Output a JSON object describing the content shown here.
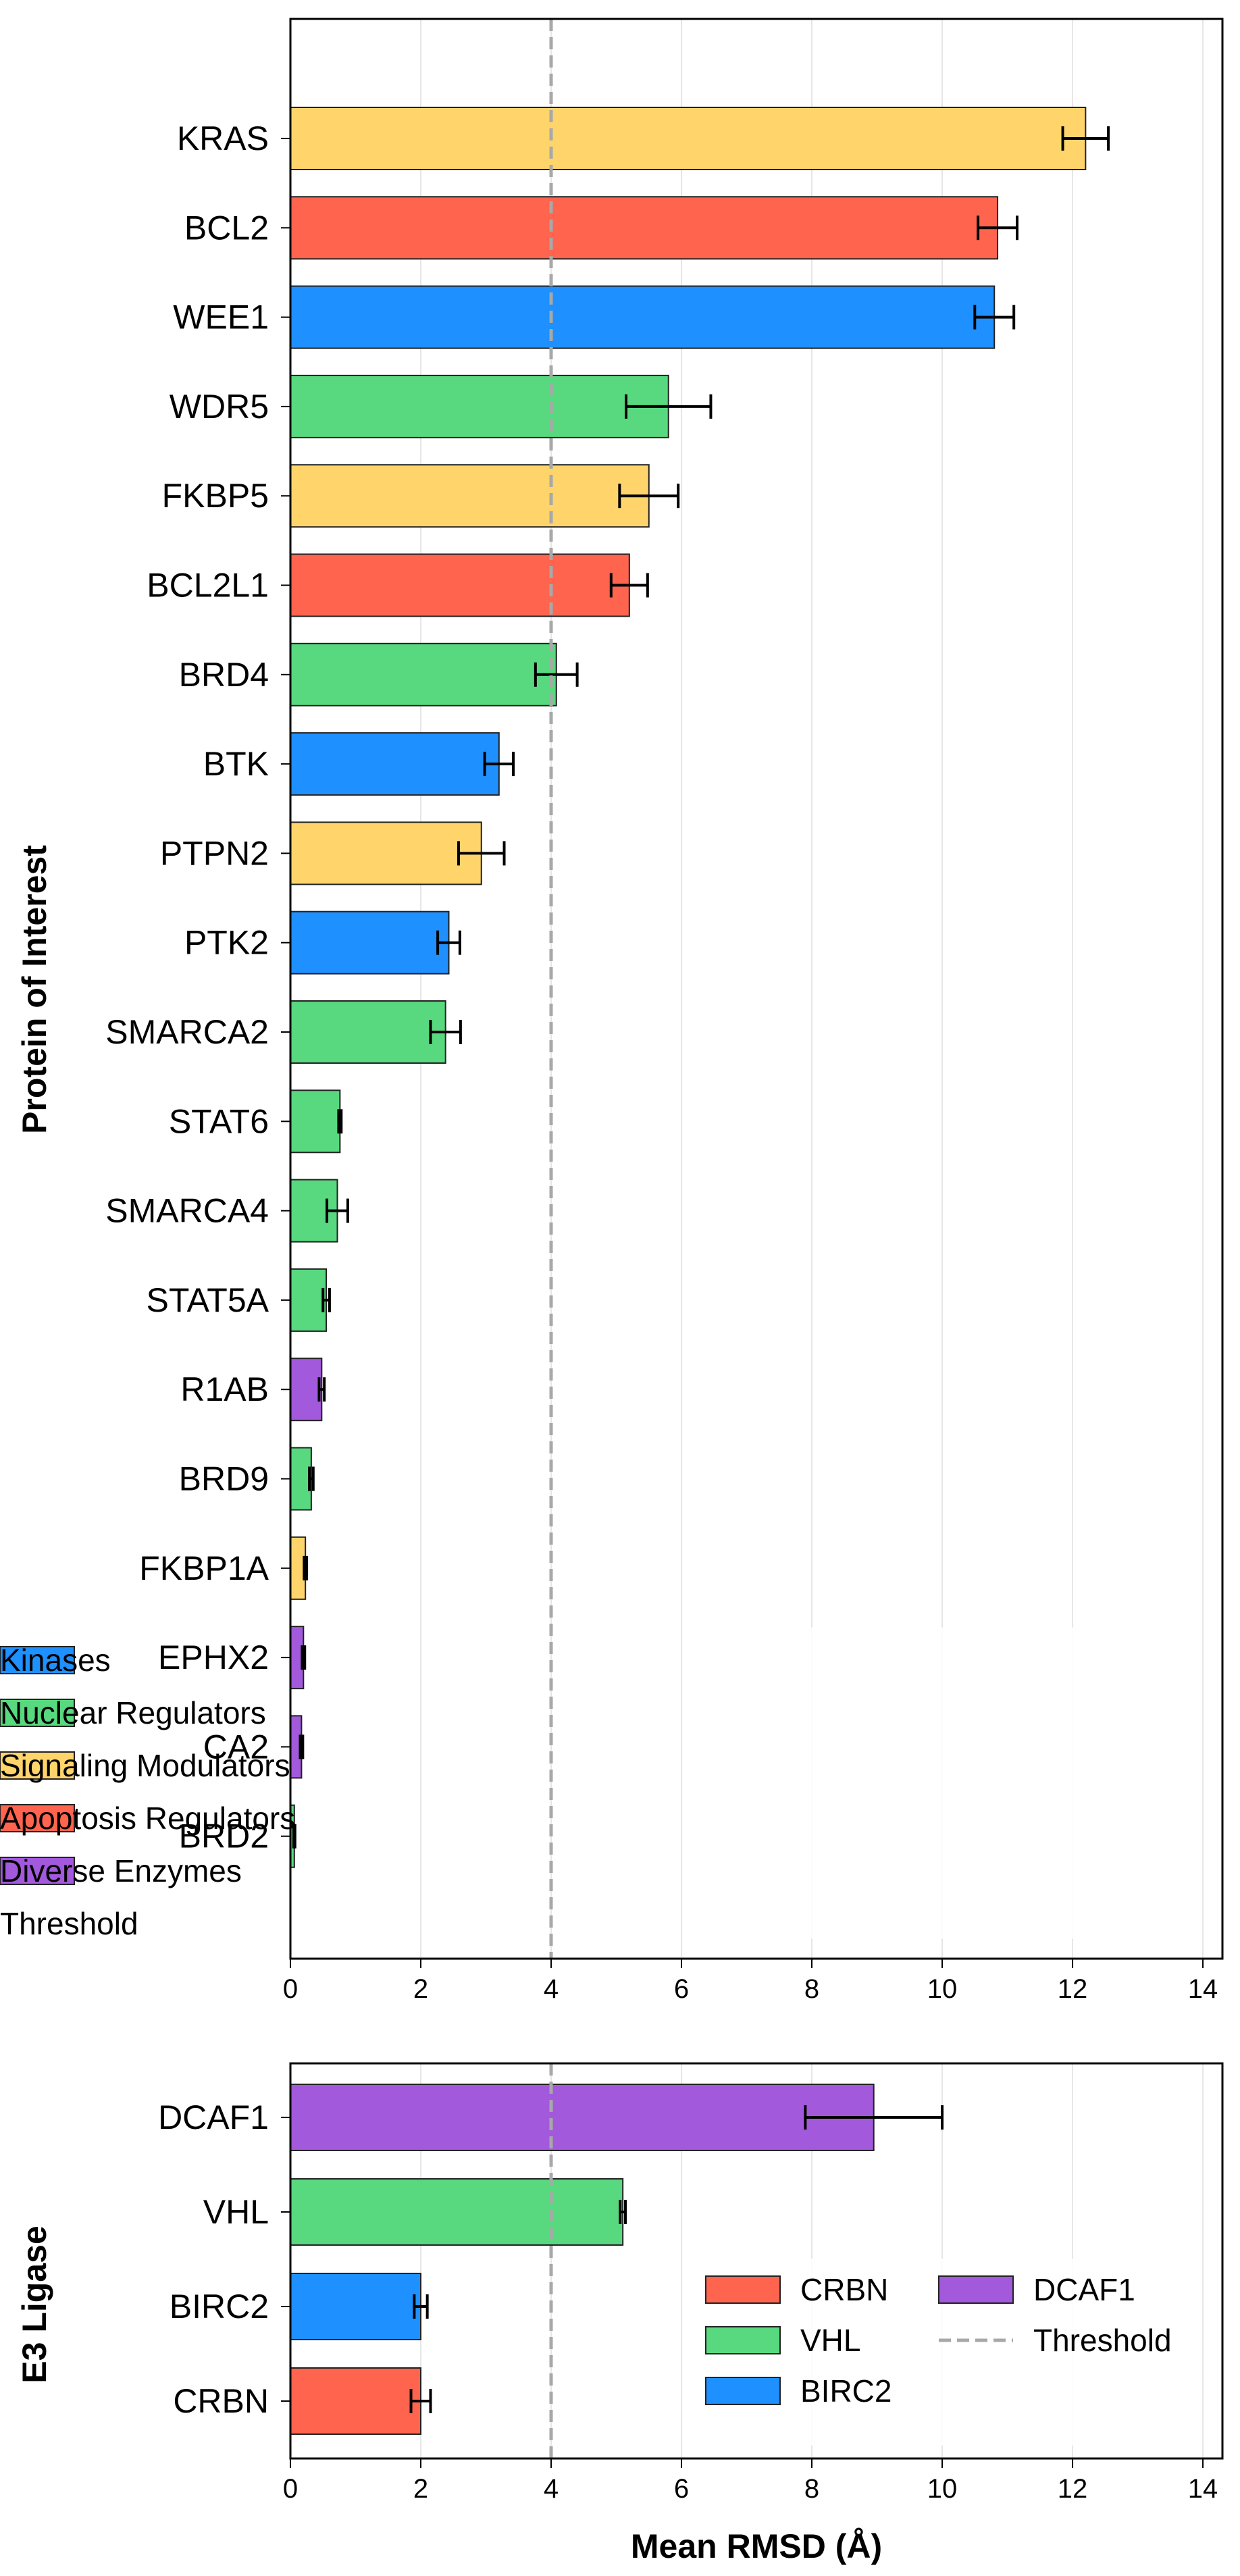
{
  "threshold": 4,
  "colors": {
    "Kinases": "#1E90FF",
    "Nuclear Regulators": "#58D97F",
    "Signaling Modulators": "#FFD56B",
    "Apoptosis Regulators": "#FF644E",
    "Diverse Enzymes": "#A259DC",
    "CRBN": "#FF644E",
    "VHL": "#58D97F",
    "BIRC2": "#1E90FF",
    "DCAF1": "#A259DC",
    "threshold_line": "#A8A8A8",
    "grid": "#E6E6E6"
  },
  "chart_data": [
    {
      "type": "bar",
      "orientation": "horizontal",
      "ylabel": "Protein of Interest",
      "xlim": [
        0,
        14.3
      ],
      "xticks": [
        "0",
        "2",
        "4",
        "6",
        "8",
        "10",
        "12",
        "14"
      ],
      "grid": "vertical",
      "legend_position": "lower-right",
      "legend": [
        "Kinases",
        "Nuclear Regulators",
        "Signaling Modulators",
        "Apoptosis Regulators",
        "Diverse Enzymes",
        "Threshold"
      ],
      "bars": [
        {
          "name": "KRAS",
          "value": 12.2,
          "error": 0.35,
          "group": "Signaling Modulators"
        },
        {
          "name": "BCL2",
          "value": 10.85,
          "error": 0.3,
          "group": "Apoptosis Regulators"
        },
        {
          "name": "WEE1",
          "value": 10.8,
          "error": 0.3,
          "group": "Kinases"
        },
        {
          "name": "WDR5",
          "value": 5.8,
          "error": 0.65,
          "group": "Nuclear Regulators"
        },
        {
          "name": "FKBP5",
          "value": 5.5,
          "error": 0.45,
          "group": "Signaling Modulators"
        },
        {
          "name": "BCL2L1",
          "value": 5.2,
          "error": 0.28,
          "group": "Apoptosis Regulators"
        },
        {
          "name": "BRD4",
          "value": 4.08,
          "error": 0.32,
          "group": "Nuclear Regulators"
        },
        {
          "name": "BTK",
          "value": 3.2,
          "error": 0.22,
          "group": "Kinases"
        },
        {
          "name": "PTPN2",
          "value": 2.93,
          "error": 0.35,
          "group": "Signaling Modulators"
        },
        {
          "name": "PTK2",
          "value": 2.43,
          "error": 0.17,
          "group": "Kinases"
        },
        {
          "name": "SMARCA2",
          "value": 2.38,
          "error": 0.23,
          "group": "Nuclear Regulators"
        },
        {
          "name": "STAT6",
          "value": 0.76,
          "error": 0.02,
          "group": "Nuclear Regulators"
        },
        {
          "name": "SMARCA4",
          "value": 0.72,
          "error": 0.16,
          "group": "Nuclear Regulators"
        },
        {
          "name": "STAT5A",
          "value": 0.55,
          "error": 0.05,
          "group": "Nuclear Regulators"
        },
        {
          "name": "R1AB",
          "value": 0.48,
          "error": 0.04,
          "group": "Diverse Enzymes"
        },
        {
          "name": "BRD9",
          "value": 0.32,
          "error": 0.03,
          "group": "Nuclear Regulators"
        },
        {
          "name": "FKBP1A",
          "value": 0.23,
          "error": 0.02,
          "group": "Signaling Modulators"
        },
        {
          "name": "EPHX2",
          "value": 0.2,
          "error": 0.02,
          "group": "Diverse Enzymes"
        },
        {
          "name": "CA2",
          "value": 0.17,
          "error": 0.02,
          "group": "Diverse Enzymes"
        },
        {
          "name": "BRD2",
          "value": 0.06,
          "error": 0.01,
          "group": "Nuclear Regulators"
        }
      ]
    },
    {
      "type": "bar",
      "orientation": "horizontal",
      "ylabel": "E3 Ligase",
      "xlabel": "Mean RMSD (Å)",
      "xlim": [
        0,
        14.3
      ],
      "xticks": [
        "0",
        "2",
        "4",
        "6",
        "8",
        "10",
        "12",
        "14"
      ],
      "grid": "vertical",
      "legend_position": "lower-right",
      "legend": [
        "CRBN",
        "VHL",
        "BIRC2",
        "DCAF1",
        "Threshold"
      ],
      "bars": [
        {
          "name": "DCAF1",
          "value": 8.95,
          "error": 1.05,
          "group": "DCAF1"
        },
        {
          "name": "VHL",
          "value": 5.1,
          "error": 0.04,
          "group": "VHL"
        },
        {
          "name": "BIRC2",
          "value": 2.0,
          "error": 0.1,
          "group": "BIRC2"
        },
        {
          "name": "CRBN",
          "value": 2.0,
          "error": 0.15,
          "group": "CRBN"
        }
      ]
    }
  ]
}
